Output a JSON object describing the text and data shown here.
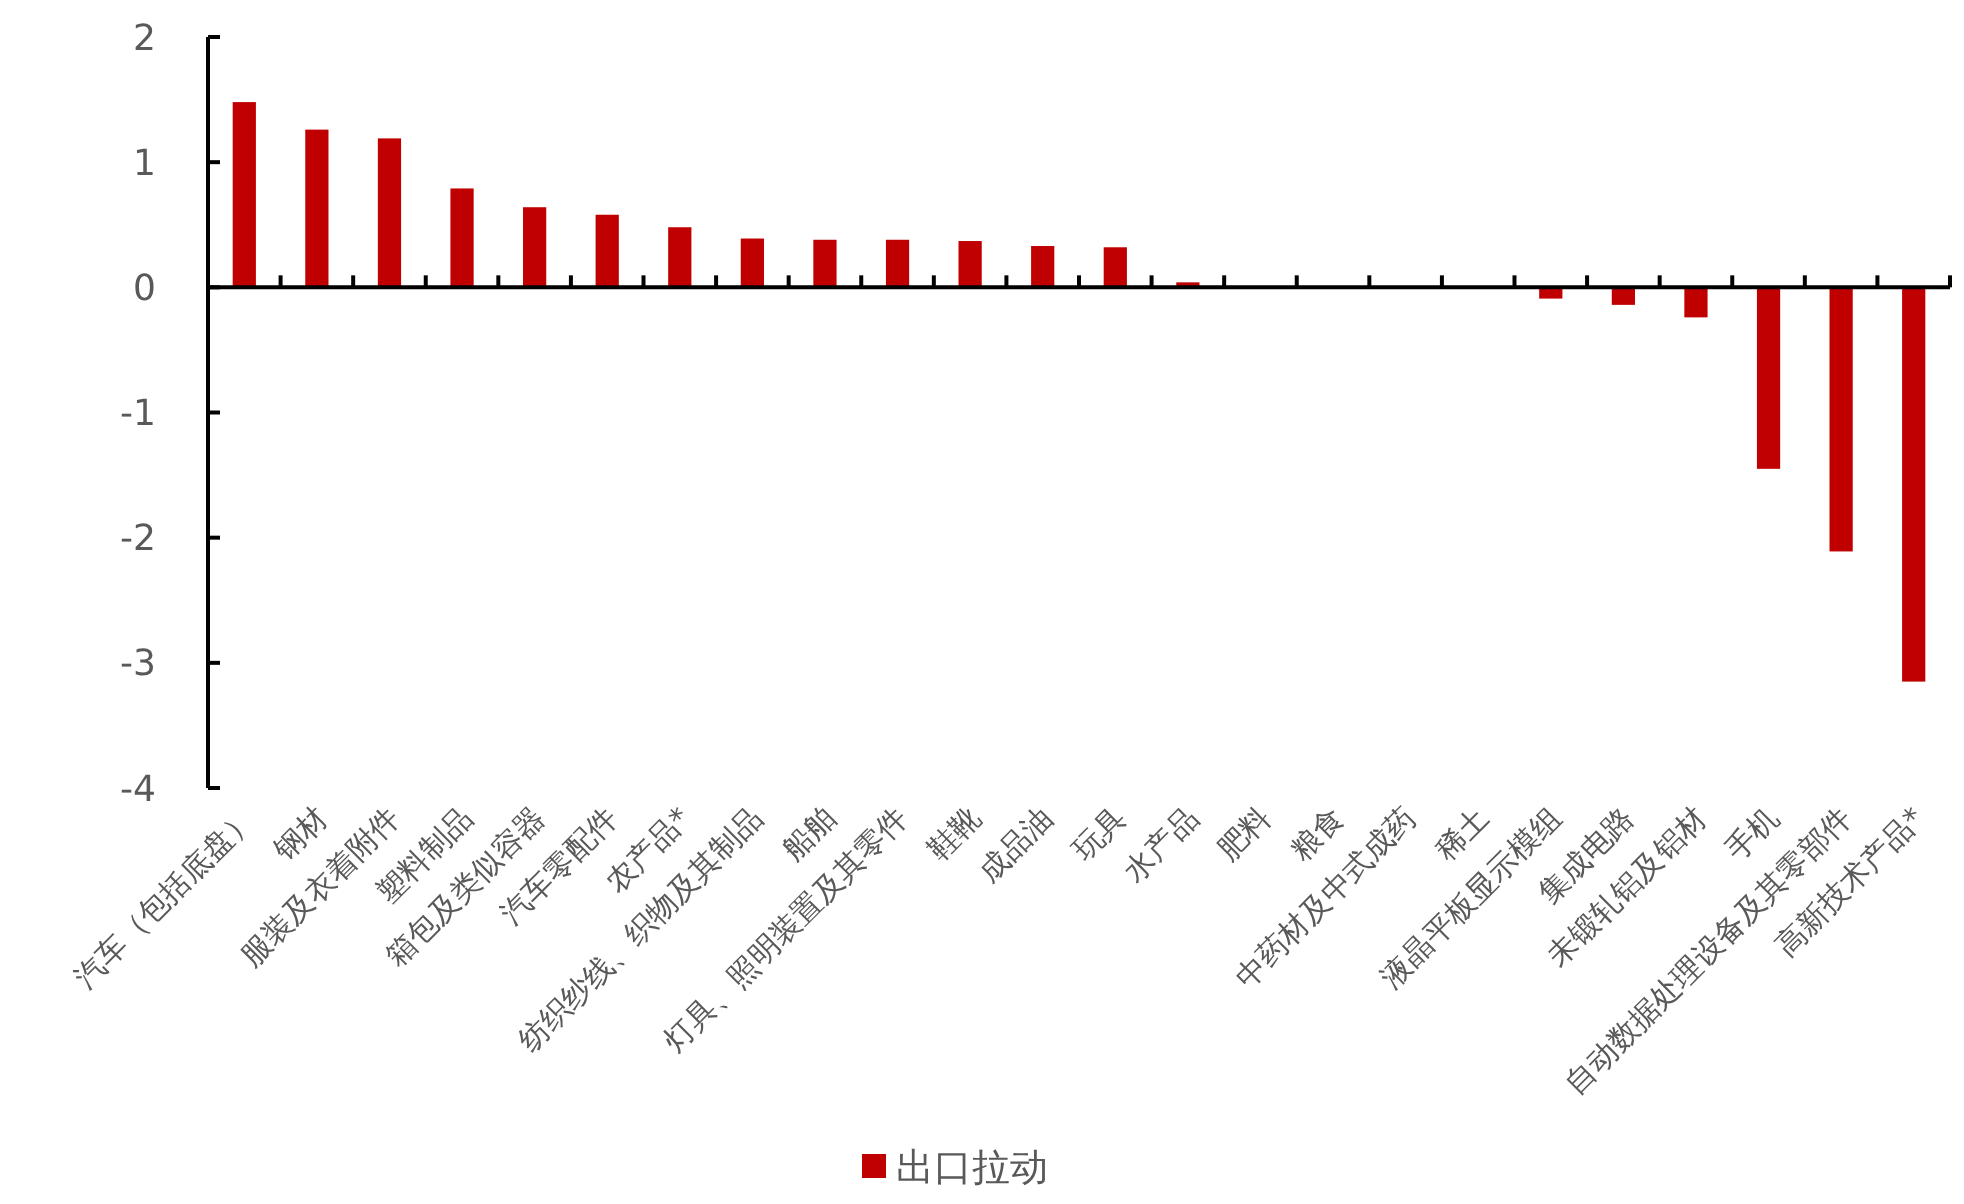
{
  "chart_data": {
    "type": "bar",
    "categories": [
      "汽车（包括底盘）",
      "钢材",
      "服装及衣着附件",
      "塑料制品",
      "箱包及类似容器",
      "汽车零配件",
      "农产品*",
      "纺织纱线、织物及其制品",
      "船舶",
      "灯具、照明装置及其零件",
      "鞋靴",
      "成品油",
      "玩具",
      "水产品",
      "肥料",
      "粮食",
      "中药材及中式成药",
      "稀土",
      "液晶平板显示模组",
      "集成电路",
      "未锻轧铝及铝材",
      "手机",
      "自动数据处理设备及其零部件",
      "高新技术产品*"
    ],
    "series": [
      {
        "name": "出口拉动",
        "color": "#c00000",
        "values": [
          1.48,
          1.26,
          1.19,
          0.79,
          0.64,
          0.58,
          0.48,
          0.39,
          0.38,
          0.38,
          0.37,
          0.33,
          0.32,
          0.04,
          0,
          0,
          0,
          0,
          -0.09,
          -0.14,
          -0.24,
          -1.45,
          -2.11,
          -3.15
        ]
      }
    ],
    "ylim": [
      -4,
      2
    ],
    "yticks": [
      -4,
      -3,
      -2,
      -1,
      0,
      1,
      2
    ],
    "legend": "bottom"
  }
}
